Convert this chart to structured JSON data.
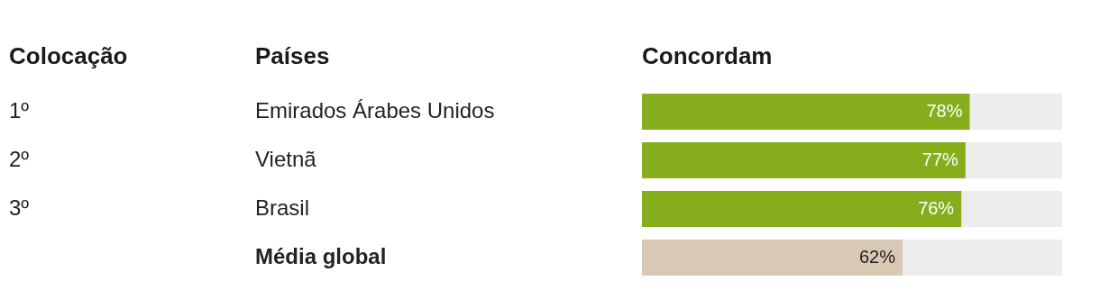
{
  "chart_data": {
    "type": "bar",
    "orientation": "horizontal",
    "ylabel": "Países",
    "xlabel": "Concordam",
    "categories": [
      "Emirados Árabes Unidos",
      "Vietnã",
      "Brasil",
      "Média global"
    ],
    "values": [
      78,
      77,
      76,
      62
    ],
    "colors": [
      "#86ad1c",
      "#86ad1c",
      "#86ad1c",
      "#d9c8b4"
    ],
    "value_labels": [
      "78%",
      "77%",
      "76%",
      "62%"
    ],
    "xlim": [
      0,
      100
    ],
    "annotations": [
      "Colocação",
      "1º",
      "2º",
      "3º"
    ]
  }
}
